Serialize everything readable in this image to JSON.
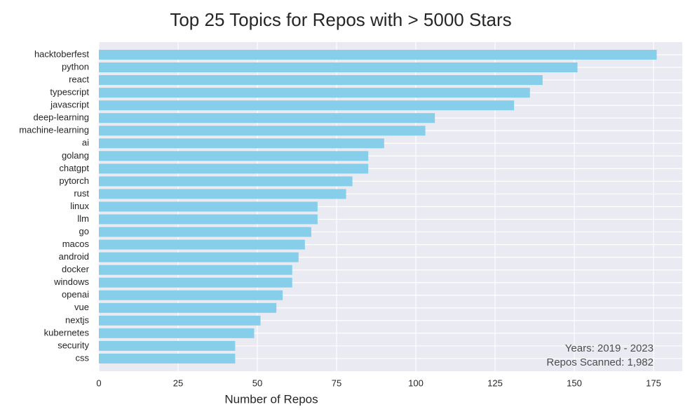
{
  "chart_data": {
    "type": "bar",
    "orientation": "horizontal",
    "title": "Top 25 Topics for Repos with > 5000 Stars",
    "xlabel": "Number of Repos",
    "ylabel": "",
    "xlim": [
      0,
      185
    ],
    "x_ticks": [
      0,
      25,
      50,
      75,
      100,
      125,
      150,
      175
    ],
    "grid": true,
    "background_color": "#eaeaf2",
    "bar_color": "#87ceeb",
    "categories": [
      "hacktoberfest",
      "python",
      "react",
      "typescript",
      "javascript",
      "deep-learning",
      "machine-learning",
      "ai",
      "golang",
      "chatgpt",
      "pytorch",
      "rust",
      "linux",
      "llm",
      "go",
      "macos",
      "android",
      "docker",
      "windows",
      "openai",
      "vue",
      "nextjs",
      "kubernetes",
      "security",
      "css"
    ],
    "values": [
      176,
      151,
      140,
      136,
      131,
      106,
      103,
      90,
      85,
      85,
      80,
      78,
      69,
      69,
      67,
      65,
      63,
      61,
      61,
      58,
      56,
      51,
      49,
      43,
      43
    ],
    "annotations": [
      "Years: 2019 - 2023",
      "Repos Scanned: 1,982"
    ],
    "annotation_position": "bottom-right"
  }
}
